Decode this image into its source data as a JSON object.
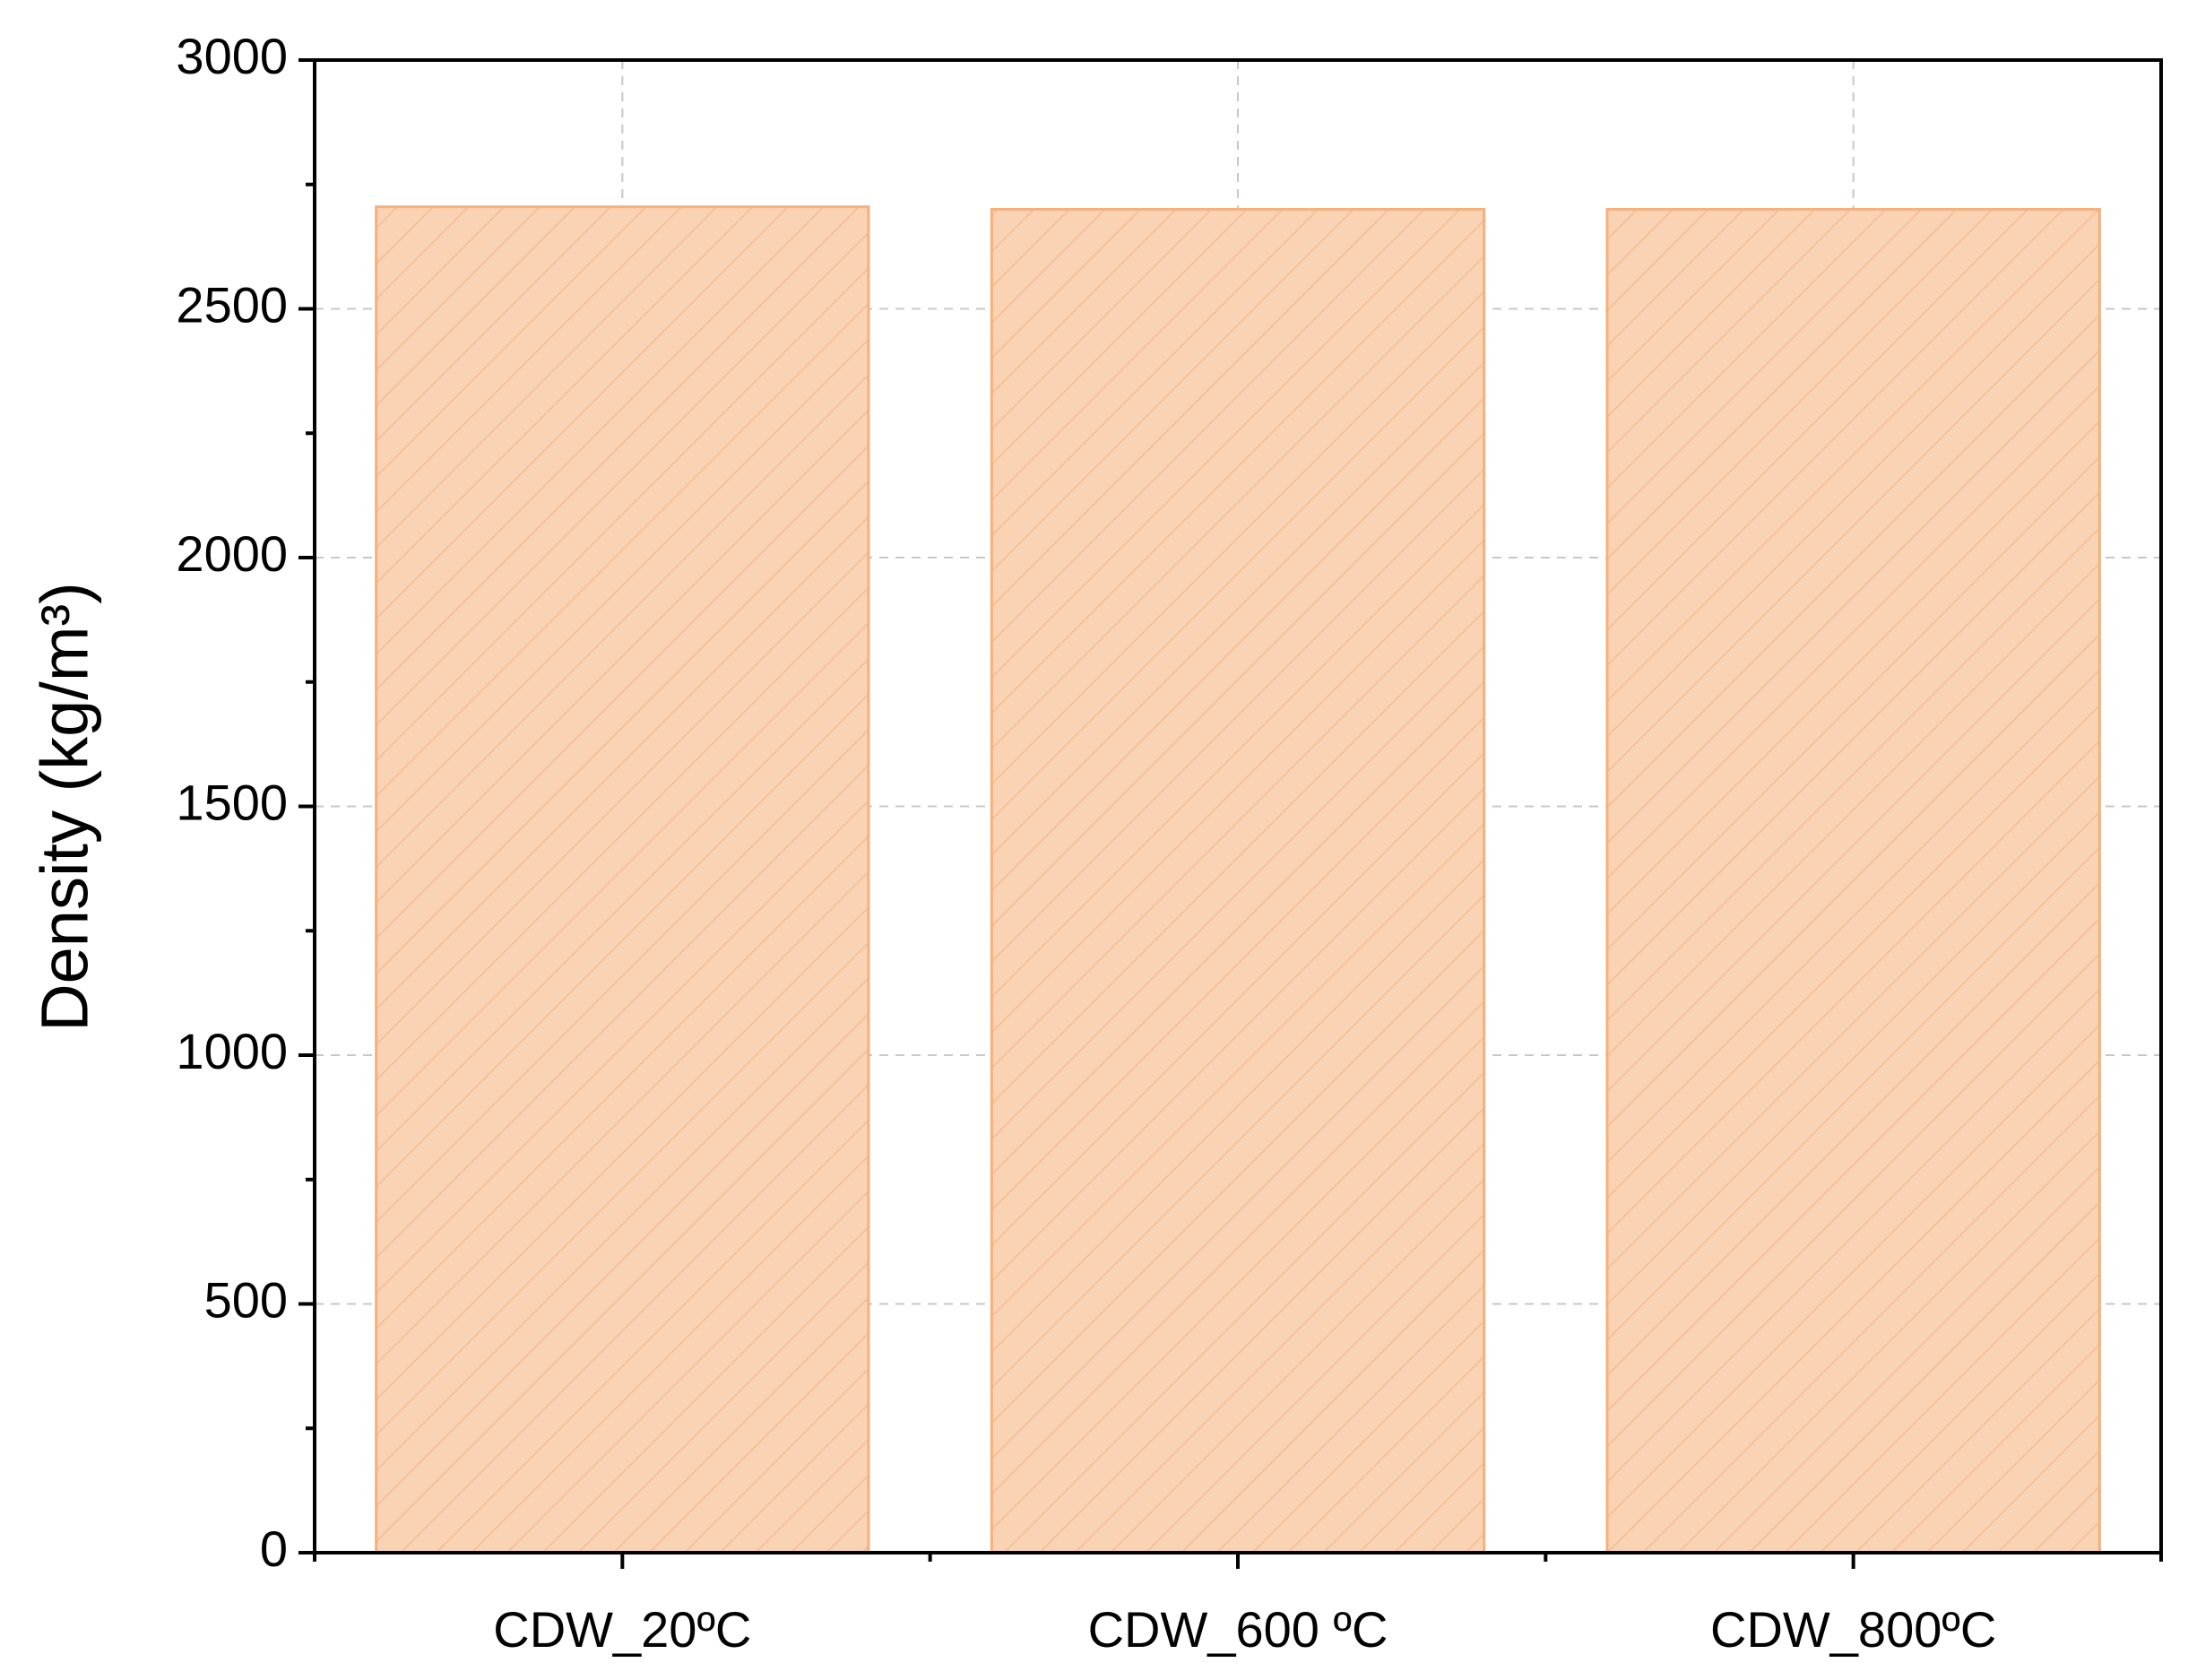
{
  "chart_data": {
    "type": "bar",
    "y_label": "Density (kg/m³)",
    "categories": [
      "CDW_20ºC",
      "CDW_600 ºC",
      "CDW_800ºC"
    ],
    "values": [
      2705,
      2700,
      2700
    ],
    "color": "#f9d3b4",
    "edge_color": "#f5b07e",
    "ylim": [
      0,
      3000
    ],
    "yticks": [
      0,
      500,
      1000,
      1500,
      2000,
      2500,
      3000
    ],
    "grid": true
  }
}
